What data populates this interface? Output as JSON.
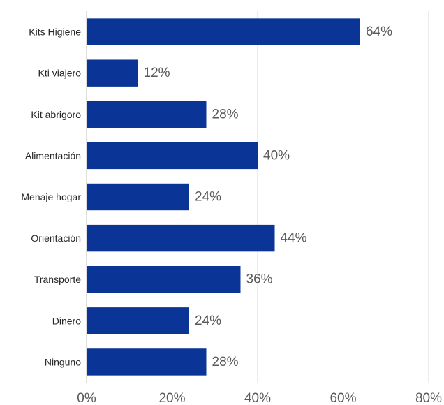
{
  "chart_data": {
    "type": "bar",
    "orientation": "horizontal",
    "categories": [
      "Kits Higiene",
      "Kti viajero",
      "Kit abrigoro",
      "Alimentación",
      "Menaje hogar",
      "Orientación",
      "Transporte",
      "Dinero",
      "Ninguno"
    ],
    "values": [
      64,
      12,
      28,
      40,
      24,
      44,
      36,
      24,
      28
    ],
    "value_labels": [
      "64%",
      "12%",
      "28%",
      "40%",
      "24%",
      "44%",
      "36%",
      "24%",
      "28%"
    ],
    "xlim": [
      0,
      80
    ],
    "xticks": [
      0,
      20,
      40,
      60,
      80
    ],
    "xtick_labels": [
      "0%",
      "20%",
      "40%",
      "60%",
      "80%"
    ],
    "grid": "vertical",
    "legend": "none",
    "bar_color": "#0a3596"
  }
}
